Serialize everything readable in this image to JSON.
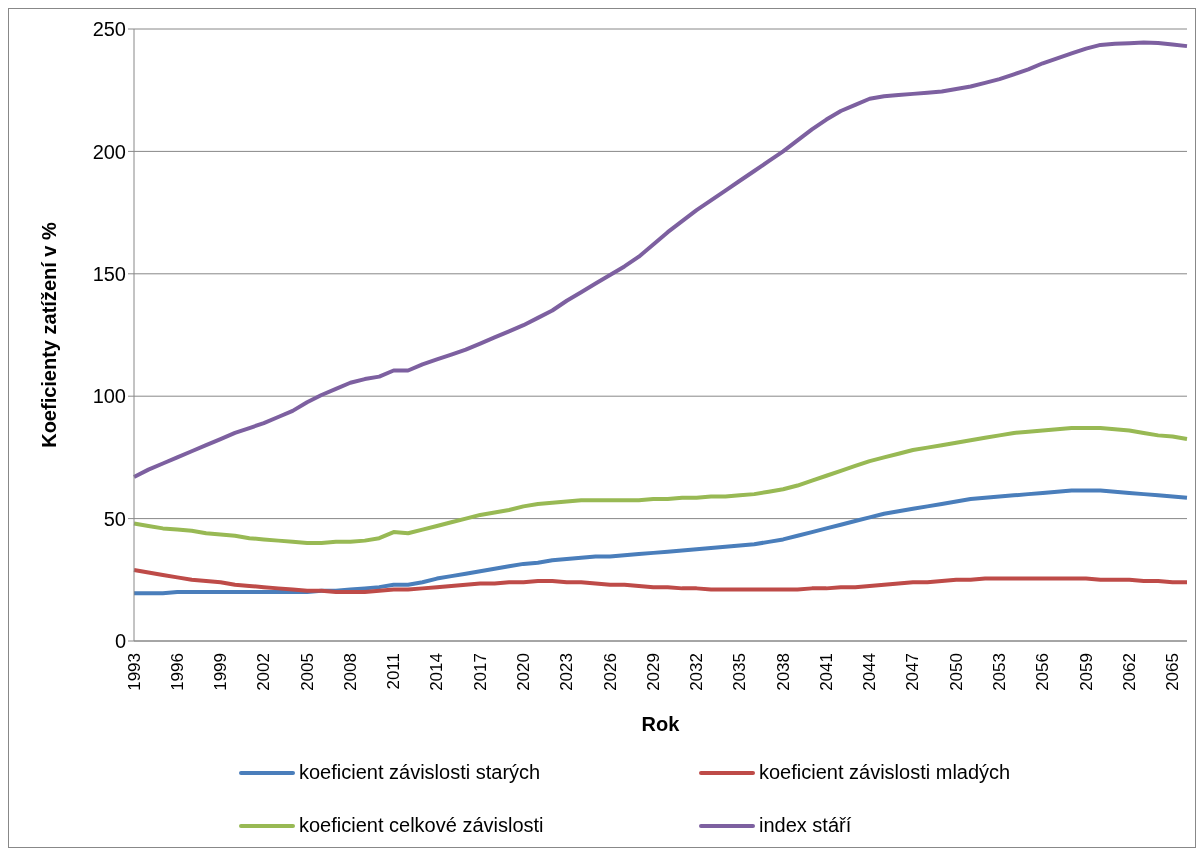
{
  "chart_data": {
    "type": "line",
    "xlabel": "Rok",
    "ylabel": "Koeficienty zatížení v %",
    "categories": [
      "1993",
      null,
      null,
      "1996",
      null,
      null,
      "1999",
      null,
      null,
      "2002",
      null,
      null,
      "2005",
      null,
      null,
      "2008",
      null,
      null,
      "2011",
      null,
      null,
      "2014",
      null,
      null,
      "2017",
      null,
      null,
      "2020",
      null,
      null,
      "2023",
      null,
      null,
      "2026",
      null,
      null,
      "2029",
      null,
      null,
      "2032",
      null,
      null,
      "2035",
      null,
      null,
      "2038",
      null,
      null,
      "2041",
      null,
      null,
      "2044",
      null,
      null,
      "2047",
      null,
      null,
      "2050",
      null,
      null,
      "2053",
      null,
      null,
      "2056",
      null,
      null,
      "2059",
      null,
      null,
      "2062",
      null,
      null,
      "2065",
      null
    ],
    "ylim": [
      0,
      250
    ],
    "yticks": [
      0,
      50,
      100,
      150,
      200,
      250
    ],
    "grid": "y",
    "legend": "bottom",
    "marker": "none",
    "line_style": "solid",
    "series": [
      {
        "name": "koeficient závislosti starých",
        "color": "#4a7ebb",
        "values": [
          19.5,
          19.5,
          19.5,
          20,
          20,
          20,
          20,
          20,
          20,
          20,
          20,
          20,
          20,
          20.5,
          20.5,
          21,
          21.5,
          22,
          23,
          23,
          24,
          25.5,
          26.5,
          27.5,
          28.5,
          29.5,
          30.5,
          31.5,
          32,
          33,
          33.5,
          34,
          34.5,
          34.5,
          35,
          35.5,
          36,
          36.5,
          37,
          37.5,
          38,
          38.5,
          39,
          39.5,
          40.5,
          41.5,
          43,
          44.5,
          46,
          47.5,
          49,
          50.5,
          52,
          53,
          54,
          55,
          56,
          57,
          58,
          58.5,
          59,
          59.5,
          60,
          60.5,
          61,
          61.5,
          61.5,
          61.5,
          61,
          60.5,
          60,
          59.5,
          59,
          58.5
        ]
      },
      {
        "name": "koeficient závislosti mladých",
        "color": "#be4b48",
        "values": [
          29,
          28,
          27,
          26,
          25,
          24.5,
          24,
          23,
          22.5,
          22,
          21.5,
          21,
          20.5,
          20.5,
          20,
          20,
          20,
          20.5,
          21,
          21,
          21.5,
          22,
          22.5,
          23,
          23.5,
          23.5,
          24,
          24,
          24.5,
          24.5,
          24,
          24,
          23.5,
          23,
          23,
          22.5,
          22,
          22,
          21.5,
          21.5,
          21,
          21,
          21,
          21,
          21,
          21,
          21,
          21.5,
          21.5,
          22,
          22,
          22.5,
          23,
          23.5,
          24,
          24,
          24.5,
          25,
          25,
          25.5,
          25.5,
          25.5,
          25.5,
          25.5,
          25.5,
          25.5,
          25.5,
          25,
          25,
          25,
          24.5,
          24.5,
          24,
          24
        ]
      },
      {
        "name": "koeficient celkové závislosti",
        "color": "#98b954",
        "values": [
          48,
          47,
          46,
          45.5,
          45,
          44,
          43.5,
          43,
          42,
          41.5,
          41,
          40.5,
          40,
          40,
          40.5,
          40.5,
          41,
          42,
          44.5,
          44,
          45.5,
          47,
          48.5,
          50,
          51.5,
          52.5,
          53.5,
          55,
          56,
          56.5,
          57,
          57.5,
          57.5,
          57.5,
          57.5,
          57.5,
          58,
          58,
          58.5,
          58.5,
          59,
          59,
          59.5,
          60,
          61,
          62,
          63.5,
          65.5,
          67.5,
          69.5,
          71.5,
          73.5,
          75,
          76.5,
          78,
          79,
          80,
          81,
          82,
          83,
          84,
          85,
          85.5,
          86,
          86.5,
          87,
          87,
          87,
          86.5,
          86,
          85,
          84,
          83.5,
          82.5
        ]
      },
      {
        "name": "index stáří",
        "color": "#7d60a0",
        "values": [
          67,
          70,
          72.5,
          75,
          77.5,
          80,
          82.5,
          85,
          87,
          89,
          91.5,
          94,
          97.5,
          100.5,
          103,
          105.5,
          107,
          108,
          110.5,
          110.5,
          113,
          115,
          117,
          119,
          121.5,
          124,
          126.5,
          129,
          132,
          135,
          139,
          142.5,
          146,
          149.5,
          153,
          157,
          162,
          167,
          171.5,
          176,
          180,
          184,
          188,
          192,
          196,
          200,
          204.5,
          209,
          213,
          216.5,
          219,
          221.5,
          222.5,
          223,
          223.5,
          224,
          224.5,
          225.5,
          226.5,
          228,
          229.5,
          231.5,
          233.5,
          236,
          238,
          240,
          242,
          243.5,
          244,
          244.2,
          244.5,
          244.3,
          243.7,
          243
        ]
      }
    ]
  }
}
